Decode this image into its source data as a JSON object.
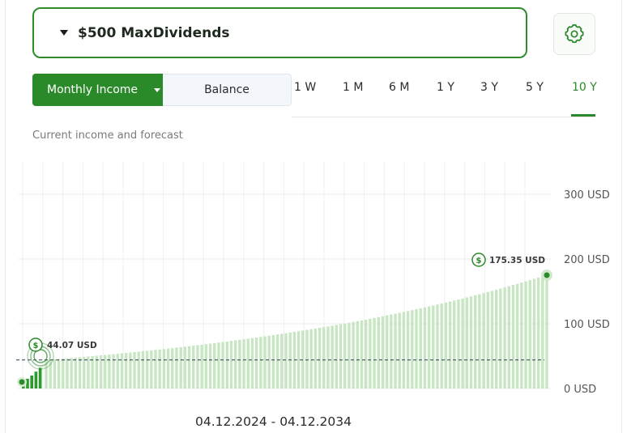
{
  "portfolio": {
    "name": "$500 MaxDividends"
  },
  "settings": {
    "icon": "gear-icon"
  },
  "view_toggle": {
    "active": "Monthly Income",
    "inactive": "Balance"
  },
  "ranges": [
    "1 W",
    "1 M",
    "6 M",
    "1 Y",
    "3 Y",
    "5 Y",
    "10 Y"
  ],
  "selected_range": "10 Y",
  "subtitle": "Current income and forecast",
  "date_range": "04.12.2024 - 04.12.2034",
  "colors": {
    "accent": "#2a8a2a",
    "bar_forecast": "#c8e6c3",
    "bar_actual": "#2a9a2a"
  },
  "chart_data": {
    "type": "bar",
    "title": "",
    "xlabel": "",
    "ylabel": "",
    "ylim": [
      0,
      300
    ],
    "y_ticks": [
      {
        "value": 0,
        "label": "0 USD"
      },
      {
        "value": 100,
        "label": "100 USD"
      },
      {
        "value": 200,
        "label": "200 USD"
      },
      {
        "value": 300,
        "label": "300 USD"
      }
    ],
    "start_value": 44.07,
    "end_value": 175.35,
    "current_value_label": "44.07 USD",
    "end_value_label": "175.35 USD",
    "reference_line_value": 44.07,
    "actual_values": [
      8,
      15,
      20,
      26,
      32
    ],
    "forecast_count": 120,
    "grid": true
  }
}
